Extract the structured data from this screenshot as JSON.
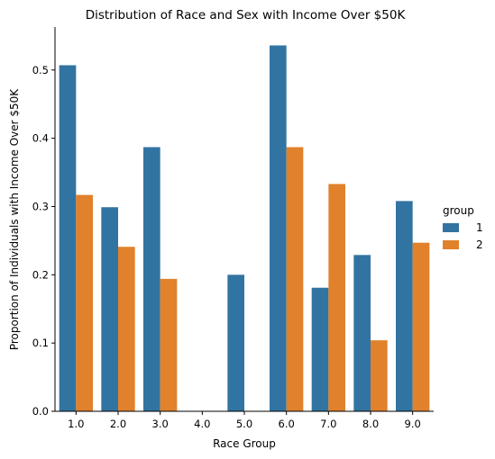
{
  "chart_data": {
    "type": "bar",
    "title": "Distribution of Race and Sex with Income Over $50K",
    "xlabel": "Race Group",
    "ylabel": "Proportion of Individuals with Income Over $50K",
    "categories": [
      "1.0",
      "2.0",
      "3.0",
      "4.0",
      "5.0",
      "6.0",
      "7.0",
      "8.0",
      "9.0"
    ],
    "series": [
      {
        "name": "1",
        "color": "#3274a1",
        "values": [
          0.507,
          0.299,
          0.387,
          0,
          0.2,
          0.536,
          0.181,
          0.229,
          0.308
        ]
      },
      {
        "name": "2",
        "color": "#e1812c",
        "values": [
          0.317,
          0.241,
          0.194,
          0,
          0,
          0.387,
          0.333,
          0.104,
          0.247
        ]
      }
    ],
    "ylim": [
      0,
      0.563
    ],
    "yticks": [
      0.0,
      0.1,
      0.2,
      0.3,
      0.4,
      0.5
    ],
    "ytick_labels": [
      "0.0",
      "0.1",
      "0.2",
      "0.3",
      "0.4",
      "0.5"
    ],
    "grid": false,
    "legend": {
      "title": "group",
      "placement": "right"
    }
  }
}
